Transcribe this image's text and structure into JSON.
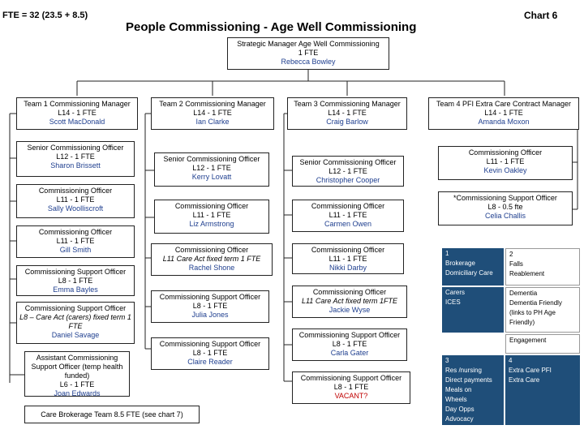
{
  "header": {
    "fte": "FTE = 32 (23.5 + 8.5)",
    "title": "People Commissioning - Age Well Commissioning",
    "chart": "Chart 6"
  },
  "top": {
    "role": "Strategic Manager Age Well Commissioning",
    "grade": "1 FTE",
    "name": "Rebecca Bowley"
  },
  "team1": [
    {
      "role": "Team 1 Commissioning Manager",
      "grade": "L14 - 1 FTE",
      "name": "Scott MacDonald"
    },
    {
      "role": "Senior Commissioning Officer",
      "grade": "L12 - 1 FTE",
      "name": "Sharon Brissett"
    },
    {
      "role": "Commissioning Officer",
      "grade": "L11 - 1 FTE",
      "name": "Sally Woolliscroft"
    },
    {
      "role": "Commissioning Officer",
      "grade": "L11 - 1 FTE",
      "name": "Gill Smith"
    },
    {
      "role": "Commissioning Support Officer",
      "grade": "L8 - 1 FTE",
      "name": "Emma Bayles"
    },
    {
      "role": "Commissioning Support Officer",
      "grade": "L8 – Care Act (carers) fixed term 1 FTE",
      "name": "Daniel Savage"
    },
    {
      "role": "Assistant Commissioning Support Officer (temp health funded)",
      "grade": "L6 - 1 FTE",
      "name": "Joan Edwards"
    }
  ],
  "team2": [
    {
      "role": "Team 2 Commissioning Manager",
      "grade": "L14 - 1 FTE",
      "name": "Ian Clarke"
    },
    {
      "role": "Senior Commissioning Officer",
      "grade": "L12 - 1 FTE",
      "name": "Kerry Lovatt"
    },
    {
      "role": "Commissioning Officer",
      "grade": "L11 - 1 FTE",
      "name": "Liz Armstrong"
    },
    {
      "role": "Commissioning Officer",
      "grade": "L11 Care Act fixed term 1 FTE",
      "name": "Rachel Shone"
    },
    {
      "role": "Commissioning Support Officer",
      "grade": "L8 - 1 FTE",
      "name": "Julia Jones"
    },
    {
      "role": "Commissioning Support Officer",
      "grade": "L8 - 1 FTE",
      "name": "Claire Reader"
    }
  ],
  "team3": [
    {
      "role": "Team 3 Commissioning Manager",
      "grade": "L14 - 1 FTE",
      "name": "Craig Barlow"
    },
    {
      "role": "Senior Commissioning Officer",
      "grade": "L12 - 1 FTE",
      "name": "Christopher Cooper"
    },
    {
      "role": "Commissioning Officer",
      "grade": "L11 - 1 FTE",
      "name": "Carmen Owen"
    },
    {
      "role": "Commissioning Officer",
      "grade": "L11 - 1 FTE",
      "name": "Nikki Darby"
    },
    {
      "role": "Commissioning Officer",
      "grade": "L11 Care Act fixed term 1FTE",
      "name": "Jackie Wyse"
    },
    {
      "role": "Commissioning Support Officer",
      "grade": "L8 - 1 FTE",
      "name": "Carla Gater"
    },
    {
      "role": "Commissioning Support Officer",
      "grade": "L8 - 1 FTE",
      "name": "VACANT?"
    }
  ],
  "team4": [
    {
      "role": "Team 4 PFI Extra Care Contract Manager",
      "grade": "L14 - 1 FTE",
      "name": "Amanda Moxon"
    },
    {
      "role": "Commissioning Officer",
      "grade": "L11 - 1 FTE",
      "name": "Kevin Oakley"
    },
    {
      "role": "*Commissioning Support Officer",
      "grade": "L8 - 0.5 fte",
      "name": "Celia Challis"
    }
  ],
  "brokerage": "Care Brokerage Team 8.5 FTE (see chart 7)",
  "grid": {
    "c1": [
      "1",
      "Brokerage",
      "Domiciliary Care"
    ],
    "c2": [
      "2",
      "Falls",
      "Reablement"
    ],
    "c3": [
      "Carers",
      "ICES"
    ],
    "c4": [
      "Dementia",
      "Dementia Friendly (links to PH Age Friendly)"
    ],
    "c5": [
      "Engagement"
    ],
    "c6": [
      "3",
      "Res /nursing",
      "Direct payments",
      "Meals on",
      "Wheels",
      "Day Opps",
      "Advocacy"
    ],
    "c7": [
      "4",
      "Extra Care PFI",
      "Extra Care"
    ]
  }
}
